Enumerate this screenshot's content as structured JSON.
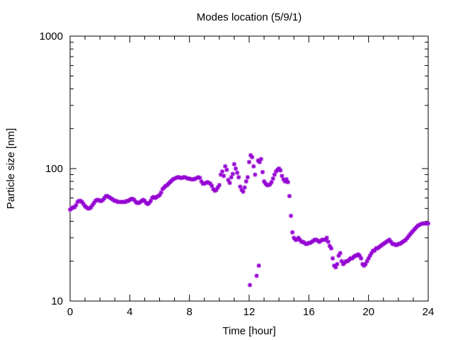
{
  "chart_data": {
    "type": "scatter",
    "title": "Modes location (5/9/1)",
    "xlabel": "Time [hour]",
    "ylabel": "Particle size [nm]",
    "xlim": [
      0,
      24
    ],
    "ylim": [
      10,
      1000
    ],
    "yscale": "log",
    "x_ticks": [
      0,
      4,
      8,
      12,
      16,
      20,
      24
    ],
    "x_tick_labels": [
      "0",
      "4",
      "8",
      "12",
      "16",
      "20",
      "24"
    ],
    "y_ticks": [
      10,
      100,
      1000
    ],
    "y_tick_labels": [
      "10",
      "100",
      "1000"
    ],
    "grid": false,
    "marker_color": "#9400D3",
    "marker": "asterisk",
    "series": [
      {
        "points": [
          [
            0.0,
            49
          ],
          [
            0.1,
            50
          ],
          [
            0.2,
            51
          ],
          [
            0.3,
            51
          ],
          [
            0.4,
            53
          ],
          [
            0.5,
            56
          ],
          [
            0.6,
            57
          ],
          [
            0.7,
            57
          ],
          [
            0.8,
            56
          ],
          [
            0.9,
            54
          ],
          [
            1.0,
            52
          ],
          [
            1.1,
            51
          ],
          [
            1.2,
            50
          ],
          [
            1.3,
            50
          ],
          [
            1.4,
            51
          ],
          [
            1.5,
            53
          ],
          [
            1.6,
            55
          ],
          [
            1.7,
            57
          ],
          [
            1.8,
            58
          ],
          [
            1.9,
            58
          ],
          [
            2.0,
            57
          ],
          [
            2.1,
            57
          ],
          [
            2.2,
            58
          ],
          [
            2.3,
            60
          ],
          [
            2.4,
            62
          ],
          [
            2.5,
            62
          ],
          [
            2.6,
            61
          ],
          [
            2.7,
            60
          ],
          [
            2.8,
            59
          ],
          [
            2.9,
            58
          ],
          [
            3.0,
            57
          ],
          [
            3.1,
            57
          ],
          [
            3.2,
            56
          ],
          [
            3.3,
            56
          ],
          [
            3.4,
            56
          ],
          [
            3.5,
            56
          ],
          [
            3.6,
            56
          ],
          [
            3.7,
            56
          ],
          [
            3.8,
            57
          ],
          [
            3.9,
            57
          ],
          [
            4.0,
            58
          ],
          [
            4.1,
            59
          ],
          [
            4.2,
            59
          ],
          [
            4.3,
            58
          ],
          [
            4.4,
            56
          ],
          [
            4.5,
            55
          ],
          [
            4.6,
            55
          ],
          [
            4.7,
            56
          ],
          [
            4.8,
            57
          ],
          [
            4.9,
            58
          ],
          [
            5.0,
            57
          ],
          [
            5.1,
            55
          ],
          [
            5.2,
            54
          ],
          [
            5.3,
            55
          ],
          [
            5.4,
            57
          ],
          [
            5.5,
            60
          ],
          [
            5.6,
            61
          ],
          [
            5.7,
            60
          ],
          [
            5.8,
            61
          ],
          [
            5.9,
            62
          ],
          [
            6.0,
            63
          ],
          [
            6.1,
            66
          ],
          [
            6.2,
            70
          ],
          [
            6.3,
            72
          ],
          [
            6.4,
            74
          ],
          [
            6.5,
            75
          ],
          [
            6.6,
            77
          ],
          [
            6.7,
            79
          ],
          [
            6.8,
            81
          ],
          [
            6.9,
            83
          ],
          [
            7.0,
            84
          ],
          [
            7.1,
            85
          ],
          [
            7.2,
            86
          ],
          [
            7.3,
            86
          ],
          [
            7.4,
            85
          ],
          [
            7.5,
            85
          ],
          [
            7.6,
            86
          ],
          [
            7.7,
            86
          ],
          [
            7.8,
            85
          ],
          [
            7.9,
            84
          ],
          [
            8.0,
            84
          ],
          [
            8.1,
            83
          ],
          [
            8.2,
            83
          ],
          [
            8.3,
            83
          ],
          [
            8.4,
            84
          ],
          [
            8.5,
            85
          ],
          [
            8.6,
            86
          ],
          [
            8.7,
            85
          ],
          [
            8.8,
            80
          ],
          [
            8.9,
            77
          ],
          [
            9.0,
            77
          ],
          [
            9.1,
            78
          ],
          [
            9.2,
            79
          ],
          [
            9.3,
            78
          ],
          [
            9.4,
            77
          ],
          [
            9.5,
            74
          ],
          [
            9.6,
            70
          ],
          [
            9.7,
            68
          ],
          [
            9.8,
            69
          ],
          [
            9.9,
            72
          ],
          [
            10.0,
            75
          ],
          [
            10.1,
            90
          ],
          [
            10.2,
            95
          ],
          [
            10.3,
            88
          ],
          [
            10.4,
            104
          ],
          [
            10.5,
            98
          ],
          [
            10.6,
            82
          ],
          [
            10.7,
            78
          ],
          [
            10.8,
            86
          ],
          [
            10.9,
            91
          ],
          [
            11.0,
            108
          ],
          [
            11.1,
            100
          ],
          [
            11.2,
            93
          ],
          [
            11.3,
            86
          ],
          [
            11.4,
            73
          ],
          [
            11.5,
            69
          ],
          [
            11.6,
            67
          ],
          [
            11.7,
            72
          ],
          [
            11.8,
            80
          ],
          [
            11.9,
            86
          ],
          [
            12.0,
            112
          ],
          [
            12.05,
            13.2
          ],
          [
            12.1,
            126
          ],
          [
            12.2,
            122
          ],
          [
            12.3,
            104
          ],
          [
            12.4,
            90
          ],
          [
            12.5,
            15.5
          ],
          [
            12.6,
            115
          ],
          [
            12.65,
            18.5
          ],
          [
            12.7,
            112
          ],
          [
            12.8,
            118
          ],
          [
            12.9,
            94
          ],
          [
            13.0,
            80
          ],
          [
            13.1,
            77
          ],
          [
            13.2,
            75
          ],
          [
            13.3,
            75
          ],
          [
            13.4,
            76
          ],
          [
            13.5,
            79
          ],
          [
            13.6,
            84
          ],
          [
            13.7,
            90
          ],
          [
            13.8,
            95
          ],
          [
            13.9,
            98
          ],
          [
            14.0,
            100
          ],
          [
            14.1,
            97
          ],
          [
            14.2,
            88
          ],
          [
            14.3,
            83
          ],
          [
            14.4,
            80
          ],
          [
            14.5,
            83
          ],
          [
            14.6,
            79
          ],
          [
            14.7,
            62
          ],
          [
            14.8,
            44
          ],
          [
            14.9,
            33
          ],
          [
            15.0,
            30
          ],
          [
            15.1,
            29
          ],
          [
            15.2,
            29
          ],
          [
            15.3,
            30
          ],
          [
            15.4,
            29
          ],
          [
            15.5,
            28
          ],
          [
            15.6,
            28
          ],
          [
            15.7,
            27.5
          ],
          [
            15.8,
            27
          ],
          [
            15.9,
            27
          ],
          [
            16.0,
            27.5
          ],
          [
            16.1,
            27.5
          ],
          [
            16.2,
            28
          ],
          [
            16.3,
            28.5
          ],
          [
            16.4,
            29
          ],
          [
            16.5,
            29
          ],
          [
            16.6,
            28.5
          ],
          [
            16.7,
            28
          ],
          [
            16.8,
            28.5
          ],
          [
            16.9,
            29
          ],
          [
            17.0,
            29
          ],
          [
            17.1,
            29
          ],
          [
            17.2,
            30
          ],
          [
            17.3,
            28
          ],
          [
            17.4,
            26
          ],
          [
            17.5,
            25
          ],
          [
            17.6,
            21
          ],
          [
            17.7,
            18.5
          ],
          [
            17.8,
            18
          ],
          [
            17.9,
            19
          ],
          [
            18.0,
            22
          ],
          [
            18.1,
            23
          ],
          [
            18.2,
            20
          ],
          [
            18.3,
            19
          ],
          [
            18.4,
            19.5
          ],
          [
            18.5,
            20
          ],
          [
            18.6,
            20
          ],
          [
            18.7,
            20.5
          ],
          [
            18.8,
            21
          ],
          [
            18.9,
            21
          ],
          [
            19.0,
            21.5
          ],
          [
            19.1,
            22
          ],
          [
            19.2,
            22
          ],
          [
            19.3,
            22.5
          ],
          [
            19.4,
            22
          ],
          [
            19.5,
            21
          ],
          [
            19.6,
            19
          ],
          [
            19.7,
            18.5
          ],
          [
            19.8,
            19
          ],
          [
            19.9,
            20
          ],
          [
            20.0,
            21
          ],
          [
            20.1,
            22
          ],
          [
            20.2,
            23
          ],
          [
            20.3,
            24
          ],
          [
            20.4,
            24
          ],
          [
            20.5,
            25
          ],
          [
            20.6,
            25
          ],
          [
            20.7,
            25.5
          ],
          [
            20.8,
            26
          ],
          [
            20.9,
            26.5
          ],
          [
            21.0,
            27
          ],
          [
            21.1,
            27.5
          ],
          [
            21.2,
            28
          ],
          [
            21.3,
            28.5
          ],
          [
            21.4,
            29
          ],
          [
            21.5,
            28
          ],
          [
            21.6,
            27
          ],
          [
            21.7,
            27
          ],
          [
            21.8,
            26.5
          ],
          [
            21.9,
            26.5
          ],
          [
            22.0,
            27
          ],
          [
            22.1,
            27
          ],
          [
            22.2,
            27.5
          ],
          [
            22.3,
            28
          ],
          [
            22.4,
            28.5
          ],
          [
            22.5,
            29
          ],
          [
            22.6,
            30
          ],
          [
            22.7,
            31
          ],
          [
            22.8,
            32
          ],
          [
            22.9,
            33
          ],
          [
            23.0,
            34
          ],
          [
            23.1,
            35
          ],
          [
            23.2,
            36
          ],
          [
            23.3,
            37
          ],
          [
            23.4,
            37.5
          ],
          [
            23.5,
            38
          ],
          [
            23.6,
            38.5
          ],
          [
            23.7,
            38.5
          ],
          [
            23.8,
            38.5
          ],
          [
            23.9,
            38.5
          ],
          [
            24.0,
            38.5
          ]
        ]
      }
    ]
  }
}
